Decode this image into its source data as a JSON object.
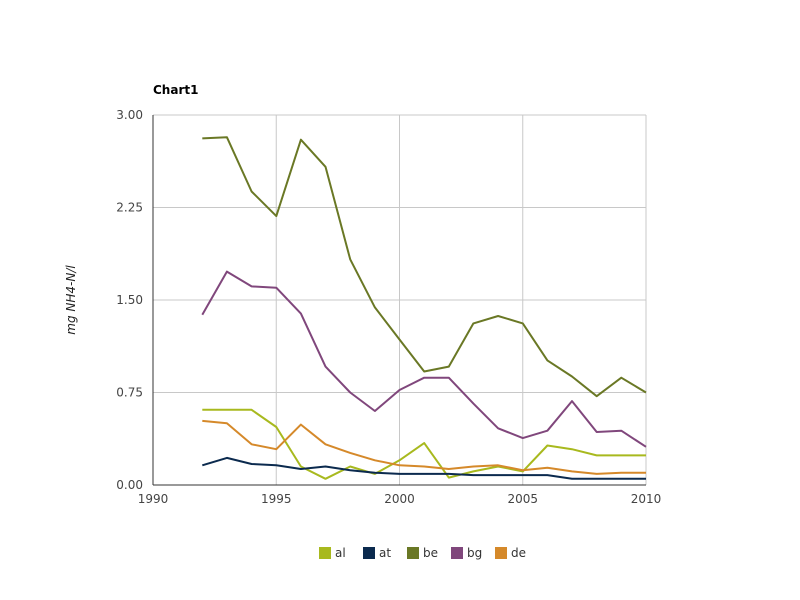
{
  "chart_data": {
    "type": "line",
    "title": "Chart1",
    "xlabel": "",
    "ylabel": "mg NH4-N/l",
    "xlim": [
      1990,
      2010
    ],
    "ylim": [
      0,
      3
    ],
    "x_ticks": [
      "1990",
      "1995",
      "2000",
      "2005",
      "2010"
    ],
    "y_ticks": [
      "0.00",
      "0.75",
      "1.50",
      "2.25",
      "3.00"
    ],
    "grid": true,
    "legend_position": "bottom",
    "x": [
      1992,
      1993,
      1994,
      1995,
      1996,
      1997,
      1998,
      1999,
      2000,
      2001,
      2002,
      2003,
      2004,
      2005,
      2006,
      2007,
      2008,
      2009,
      2010
    ],
    "series": [
      {
        "name": "al",
        "color": "#a8b91e",
        "values": [
          0.61,
          0.61,
          0.61,
          0.47,
          0.15,
          0.05,
          0.15,
          0.09,
          0.2,
          0.34,
          0.06,
          0.11,
          0.15,
          0.11,
          0.32,
          0.29,
          0.24,
          0.24,
          0.24
        ]
      },
      {
        "name": "at",
        "color": "#0b2a4e",
        "values": [
          0.16,
          0.22,
          0.17,
          0.16,
          0.13,
          0.15,
          0.12,
          0.1,
          0.09,
          0.09,
          0.09,
          0.08,
          0.08,
          0.08,
          0.08,
          0.05,
          0.05,
          0.05,
          0.05
        ]
      },
      {
        "name": "be",
        "color": "#6a7825",
        "values": [
          2.81,
          2.82,
          2.38,
          2.18,
          2.8,
          2.58,
          1.83,
          1.44,
          1.18,
          0.92,
          0.96,
          1.31,
          1.37,
          1.31,
          1.01,
          0.88,
          0.72,
          0.87,
          0.75
        ]
      },
      {
        "name": "bg",
        "color": "#80477c",
        "values": [
          1.38,
          1.73,
          1.61,
          1.6,
          1.39,
          0.96,
          0.75,
          0.6,
          0.77,
          0.87,
          0.87,
          0.66,
          0.46,
          0.38,
          0.44,
          0.68,
          0.43,
          0.44,
          0.31
        ]
      },
      {
        "name": "de",
        "color": "#d5892a",
        "values": [
          0.52,
          0.5,
          0.33,
          0.29,
          0.49,
          0.33,
          0.26,
          0.2,
          0.16,
          0.15,
          0.13,
          0.15,
          0.16,
          0.12,
          0.14,
          0.11,
          0.09,
          0.1,
          0.1
        ]
      }
    ]
  }
}
